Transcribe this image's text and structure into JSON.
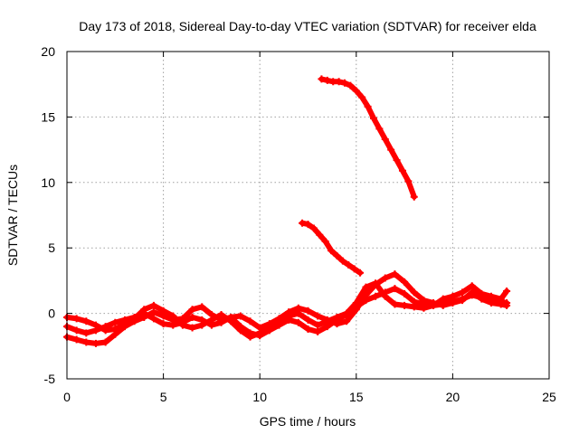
{
  "chart_data": {
    "type": "scatter",
    "title": "Day 173 of 2018, Sidereal Day-to-day VTEC variation (SDTVAR) for receiver elda",
    "xlabel": "GPS time / hours",
    "ylabel": "SDTVAR / TECUs",
    "xlim": [
      0,
      25
    ],
    "ylim": [
      -5,
      20
    ],
    "xticks": [
      "0",
      "5",
      "10",
      "15",
      "20",
      "25"
    ],
    "yticks": [
      "-5",
      "0",
      "5",
      "10",
      "15",
      "20"
    ],
    "grid": true,
    "colors": {
      "series": "#ff0000",
      "grid": "#a0a0a0",
      "axis": "#000000"
    },
    "series": [
      {
        "name": "track-a",
        "x": [
          0.0,
          0.5,
          1.0,
          1.5,
          2.0,
          2.5,
          3.0,
          3.5,
          4.0,
          4.5,
          5.0,
          5.5,
          6.0,
          6.5,
          7.0,
          7.5,
          8.0,
          8.5,
          9.0,
          9.5,
          10.0,
          10.5,
          11.0,
          11.5,
          12.0,
          12.5,
          13.0,
          13.5,
          14.0,
          14.5,
          15.0,
          15.5,
          16.0,
          16.5,
          17.0,
          17.5,
          18.0,
          18.5,
          19.0,
          19.5,
          20.0,
          20.5,
          21.0,
          21.5,
          22.0,
          22.5,
          22.8
        ],
        "y": [
          -1.8,
          -2.0,
          -2.2,
          -2.3,
          -2.2,
          -1.6,
          -1.0,
          -0.6,
          -0.3,
          0.1,
          -0.2,
          -0.5,
          -0.4,
          0.3,
          0.5,
          -0.1,
          -0.5,
          -0.3,
          -1.0,
          -1.5,
          -1.7,
          -1.3,
          -0.9,
          -0.5,
          -0.7,
          -1.2,
          -1.4,
          -1.0,
          -0.5,
          -0.1,
          0.5,
          1.0,
          1.3,
          1.6,
          1.9,
          1.5,
          0.9,
          0.7,
          0.6,
          0.7,
          0.9,
          1.1,
          1.4,
          1.2,
          1.0,
          0.9,
          0.8
        ]
      },
      {
        "name": "track-b",
        "x": [
          0.0,
          0.5,
          1.0,
          1.5,
          2.0,
          2.5,
          3.0,
          3.5,
          4.0,
          4.5,
          5.0,
          5.5,
          6.0,
          6.5,
          7.0,
          7.5,
          8.0,
          8.5,
          9.0,
          9.5,
          10.0,
          10.5,
          11.0,
          11.5,
          12.0,
          12.5,
          13.0,
          13.5,
          14.0,
          14.5,
          15.0,
          15.5,
          16.0,
          16.5,
          17.0,
          17.5,
          18.0,
          18.5,
          19.0,
          19.5,
          20.0,
          20.5,
          21.0,
          21.5,
          22.0,
          22.5,
          22.8
        ],
        "y": [
          -1.0,
          -1.3,
          -1.5,
          -1.3,
          -1.0,
          -0.7,
          -0.5,
          -0.3,
          0.0,
          -0.4,
          -0.8,
          -0.9,
          -0.7,
          -0.3,
          -0.5,
          -0.9,
          -0.7,
          -0.3,
          -0.2,
          -0.6,
          -1.1,
          -0.8,
          -0.4,
          0.1,
          0.4,
          0.2,
          -0.2,
          -0.5,
          -0.8,
          -0.6,
          0.3,
          1.4,
          2.2,
          2.7,
          3.0,
          2.4,
          1.6,
          1.0,
          0.8,
          0.6,
          0.8,
          1.0,
          1.6,
          1.1,
          0.8,
          0.7,
          0.6
        ]
      },
      {
        "name": "track-c",
        "x": [
          0.0,
          0.5,
          1.0,
          1.5,
          2.0,
          2.5,
          3.0,
          3.5,
          4.0,
          4.5,
          5.0,
          5.5,
          6.0,
          6.5,
          7.0,
          7.5,
          8.0,
          8.5,
          9.0,
          9.5,
          10.0,
          10.5,
          11.0,
          11.5,
          12.0,
          12.5,
          13.0,
          13.5,
          14.0,
          14.5,
          15.0,
          15.5,
          16.0,
          16.5,
          17.0,
          17.5,
          18.0,
          18.5,
          19.0,
          19.5,
          20.0,
          20.5,
          21.0,
          21.5,
          22.0,
          22.5,
          22.8
        ],
        "y": [
          -0.3,
          -0.4,
          -0.6,
          -0.9,
          -1.3,
          -1.2,
          -0.8,
          -0.4,
          0.3,
          0.6,
          0.2,
          -0.2,
          -0.9,
          -1.1,
          -0.9,
          -0.5,
          -0.1,
          -0.6,
          -1.3,
          -1.8,
          -1.5,
          -1.0,
          -0.6,
          -0.2,
          0.0,
          -0.5,
          -0.9,
          -0.6,
          -0.3,
          0.0,
          0.8,
          2.0,
          2.3,
          1.3,
          0.7,
          0.6,
          0.5,
          0.4,
          0.6,
          1.1,
          1.3,
          1.6,
          2.1,
          1.5,
          1.3,
          1.1,
          1.7
        ]
      },
      {
        "name": "track-d",
        "x": [
          12.2,
          12.5,
          12.8,
          13.1,
          13.4,
          13.7,
          14.0,
          14.3,
          14.6,
          14.9,
          15.2
        ],
        "y": [
          6.9,
          6.8,
          6.5,
          6.0,
          5.5,
          4.8,
          4.4,
          4.0,
          3.7,
          3.4,
          3.1
        ]
      },
      {
        "name": "track-e",
        "x": [
          13.2,
          13.5,
          13.8,
          14.1,
          14.4,
          14.7,
          15.0,
          15.3,
          15.6,
          15.9,
          16.2,
          16.5,
          16.8,
          17.1,
          17.4,
          17.7,
          18.0
        ],
        "y": [
          17.9,
          17.8,
          17.7,
          17.7,
          17.6,
          17.4,
          17.0,
          16.5,
          15.8,
          14.9,
          14.1,
          13.3,
          12.5,
          11.7,
          10.9,
          10.1,
          8.9
        ]
      }
    ]
  }
}
